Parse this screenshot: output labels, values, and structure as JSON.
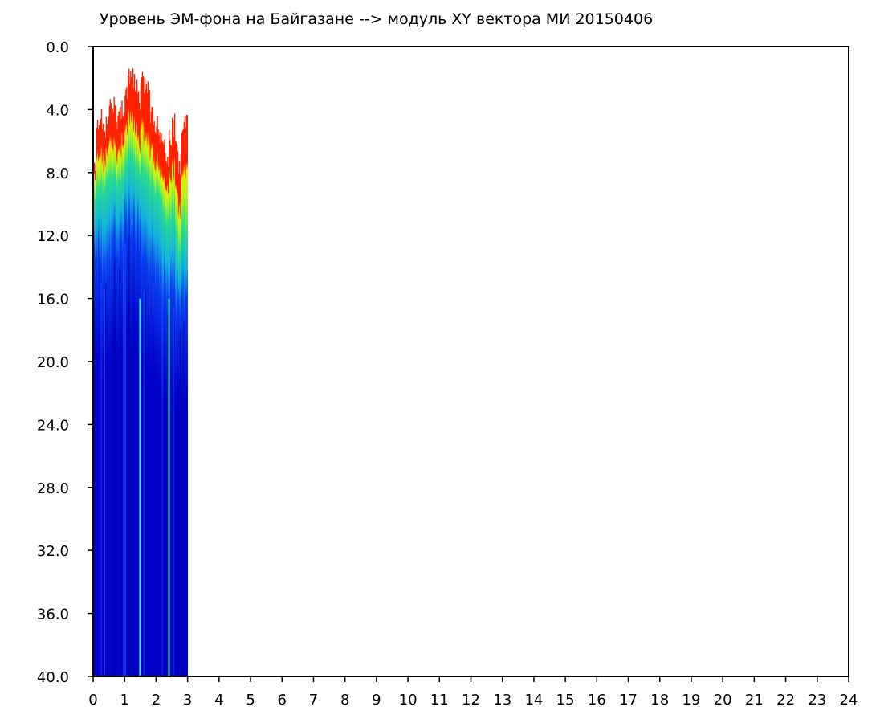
{
  "chart_data": {
    "type": "heatmap",
    "title": "Уровень ЭМ-фона на Байгазане  -->  модуль XY вектора МИ  20150406",
    "xlabel": "",
    "ylabel": "",
    "xlim": [
      0,
      24
    ],
    "ylim": [
      0,
      40
    ],
    "y_inverted": true,
    "x_ticks": [
      "0",
      "1",
      "2",
      "3",
      "4",
      "5",
      "6",
      "7",
      "8",
      "9",
      "10",
      "11",
      "12",
      "13",
      "14",
      "15",
      "16",
      "17",
      "18",
      "19",
      "20",
      "21",
      "22",
      "23",
      "24"
    ],
    "y_ticks": [
      "0.0",
      "4.0",
      "8.0",
      "12.0",
      "16.0",
      "20.0",
      "24.0",
      "28.0",
      "32.0",
      "36.0",
      "40.0"
    ],
    "grid": false,
    "colorscale": [
      "#0000c8",
      "#0a3cf0",
      "#14b4dc",
      "#28dc8c",
      "#a0f028",
      "#f0f000",
      "#ff2000"
    ],
    "data_extent_x": [
      0,
      3
    ],
    "columns": [
      {
        "x": 0.0,
        "red": 8.0,
        "yellow": 8.6,
        "green": 10.0,
        "cyan": 13.5
      },
      {
        "x": 0.1,
        "red": 5.0,
        "yellow": 7.2,
        "green": 9.0,
        "cyan": 13.5
      },
      {
        "x": 0.2,
        "red": 4.5,
        "yellow": 7.0,
        "green": 8.8,
        "cyan": 14.0
      },
      {
        "x": 0.3,
        "red": 5.5,
        "yellow": 7.5,
        "green": 9.0,
        "cyan": 14.5
      },
      {
        "x": 0.4,
        "red": 5.0,
        "yellow": 7.0,
        "green": 8.5,
        "cyan": 14.0
      },
      {
        "x": 0.5,
        "red": 4.0,
        "yellow": 6.5,
        "green": 8.5,
        "cyan": 13.0
      },
      {
        "x": 0.6,
        "red": 3.8,
        "yellow": 6.5,
        "green": 8.2,
        "cyan": 12.5
      },
      {
        "x": 0.7,
        "red": 4.5,
        "yellow": 7.0,
        "green": 8.6,
        "cyan": 13.5
      },
      {
        "x": 0.8,
        "red": 4.2,
        "yellow": 6.8,
        "green": 8.5,
        "cyan": 13.0
      },
      {
        "x": 0.9,
        "red": 3.8,
        "yellow": 6.0,
        "green": 8.0,
        "cyan": 12.0
      },
      {
        "x": 1.0,
        "red": 3.0,
        "yellow": 5.5,
        "green": 7.5,
        "cyan": 11.5
      },
      {
        "x": 1.1,
        "red": 2.2,
        "yellow": 5.0,
        "green": 7.0,
        "cyan": 11.0
      },
      {
        "x": 1.2,
        "red": 2.0,
        "yellow": 5.0,
        "green": 7.0,
        "cyan": 11.5
      },
      {
        "x": 1.3,
        "red": 2.5,
        "yellow": 5.5,
        "green": 7.5,
        "cyan": 12.0
      },
      {
        "x": 1.4,
        "red": 3.5,
        "yellow": 6.5,
        "green": 8.0,
        "cyan": 12.5
      },
      {
        "x": 1.5,
        "red": 2.3,
        "yellow": 5.5,
        "green": 8.0,
        "cyan": 14.0
      },
      {
        "x": 1.6,
        "red": 2.5,
        "yellow": 6.0,
        "green": 8.0,
        "cyan": 14.5
      },
      {
        "x": 1.7,
        "red": 3.0,
        "yellow": 6.5,
        "green": 8.5,
        "cyan": 14.0
      },
      {
        "x": 1.8,
        "red": 4.5,
        "yellow": 7.0,
        "green": 9.0,
        "cyan": 14.0
      },
      {
        "x": 1.9,
        "red": 5.5,
        "yellow": 8.0,
        "green": 9.5,
        "cyan": 14.5
      },
      {
        "x": 2.0,
        "red": 5.0,
        "yellow": 7.5,
        "green": 9.0,
        "cyan": 14.5
      },
      {
        "x": 2.1,
        "red": 5.5,
        "yellow": 8.0,
        "green": 9.5,
        "cyan": 15.0
      },
      {
        "x": 2.2,
        "red": 6.0,
        "yellow": 8.5,
        "green": 10.5,
        "cyan": 15.5
      },
      {
        "x": 2.3,
        "red": 7.0,
        "yellow": 9.0,
        "green": 11.0,
        "cyan": 16.0
      },
      {
        "x": 2.4,
        "red": 6.0,
        "yellow": 8.5,
        "green": 11.0,
        "cyan": 16.0
      },
      {
        "x": 2.5,
        "red": 5.0,
        "yellow": 8.0,
        "green": 10.5,
        "cyan": 15.5
      },
      {
        "x": 2.6,
        "red": 6.5,
        "yellow": 9.5,
        "green": 12.0,
        "cyan": 16.5
      },
      {
        "x": 2.7,
        "red": 7.5,
        "yellow": 10.5,
        "green": 13.0,
        "cyan": 17.0
      },
      {
        "x": 2.8,
        "red": 5.5,
        "yellow": 8.5,
        "green": 11.5,
        "cyan": 16.5
      },
      {
        "x": 2.9,
        "red": 4.5,
        "yellow": 8.0,
        "green": 12.0,
        "cyan": 17.0
      }
    ],
    "highlight_lines_x": [
      1.49,
      2.41
    ]
  }
}
